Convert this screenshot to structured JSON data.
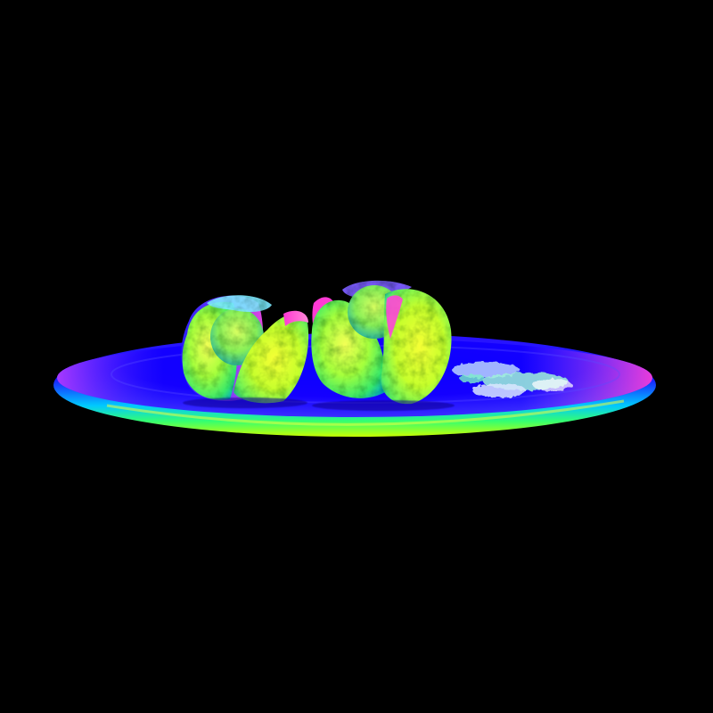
{
  "scene": {
    "background": "#000000",
    "render_style": "surface-normal-map",
    "objects": [
      {
        "name": "plate",
        "shape": "ellipse",
        "colors": [
          "#2b00ff",
          "#00c8ff",
          "#39ff6a",
          "#d6ff00",
          "#ff00d4"
        ]
      },
      {
        "name": "food-item-left",
        "shape": "bun-halves",
        "colors": [
          "#9bff3a",
          "#e6ff2a",
          "#4a2bff",
          "#ff3bd0"
        ]
      },
      {
        "name": "food-item-right",
        "shape": "bun-halves",
        "colors": [
          "#9bff3a",
          "#e6ff2a",
          "#ff3bd0",
          "#7c5cff"
        ]
      },
      {
        "name": "garnish-right",
        "shape": "crumbs",
        "colors": [
          "#c8d8ff",
          "#8ff6d0",
          "#ffffff"
        ]
      }
    ]
  }
}
